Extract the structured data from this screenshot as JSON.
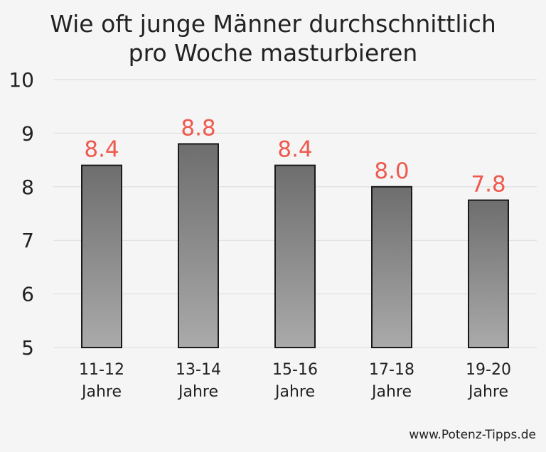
{
  "chart_data": {
    "type": "bar",
    "title": "Wie oft junge Männer durchschnittlich pro Woche masturbieren",
    "title_lines": [
      "Wie oft junge Männer durchschnittlich",
      "pro Woche masturbieren"
    ],
    "categories": [
      "11-12 Jahre",
      "13-14 Jahre",
      "15-16 Jahre",
      "17-18 Jahre",
      "19-20 Jahre"
    ],
    "category_lines": [
      [
        "11-12",
        "Jahre"
      ],
      [
        "13-14",
        "Jahre"
      ],
      [
        "15-16",
        "Jahre"
      ],
      [
        "17-18",
        "Jahre"
      ],
      [
        "19-20",
        "Jahre"
      ]
    ],
    "values": [
      8.4,
      8.8,
      8.4,
      8.0,
      7.75
    ],
    "data_labels": [
      "8.4",
      "8.8",
      "8.4",
      "8.0",
      "7.8"
    ],
    "ylim": [
      5,
      10
    ],
    "yticks": [
      "5",
      "6",
      "7",
      "8",
      "9",
      "10"
    ],
    "xlabel": "",
    "ylabel": "",
    "grid": true,
    "legend": "none",
    "colors": {
      "bar_top": "#6e6e6e",
      "bar_bottom": "#aaaaaa",
      "bar_border": "#1a1a1a",
      "data_label": "#ee5a4f",
      "grid": "#dcdcdc",
      "background": "#f5f5f5"
    }
  },
  "footer": {
    "credit": "www.Potenz-Tipps.de"
  }
}
